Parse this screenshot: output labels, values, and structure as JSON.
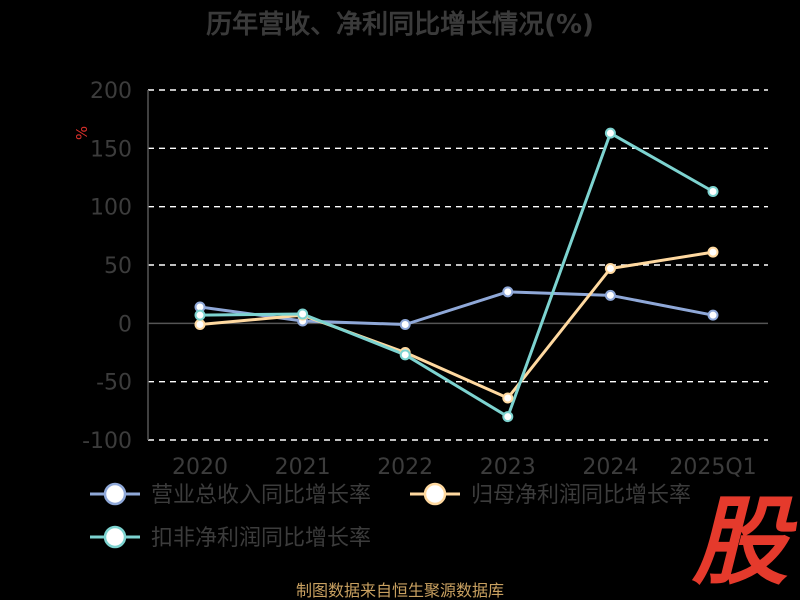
{
  "chart_data": {
    "type": "line",
    "title": "历年营收、净利同比增长情况(%)",
    "ylabel": "%",
    "categories": [
      "2020",
      "2021",
      "2022",
      "2023",
      "2024",
      "2025Q1"
    ],
    "ylim": [
      -100,
      200
    ],
    "yticks": [
      200,
      150,
      100,
      50,
      0,
      -50,
      -100
    ],
    "grid": true,
    "legend_position": "bottom-left",
    "series": [
      {
        "name": "营业总收入同比增长率",
        "color": "#8fa8d8",
        "values": [
          14,
          2,
          -1,
          27,
          24,
          7
        ]
      },
      {
        "name": "归母净利润同比增长率",
        "color": "#ffd9a0",
        "values": [
          -1,
          7,
          -25,
          -64,
          47,
          61
        ]
      },
      {
        "name": "扣非净利润同比增长率",
        "color": "#7dd3d0",
        "values": [
          7,
          8,
          -27,
          -80,
          163,
          113
        ]
      }
    ]
  },
  "source": "制图数据来自恒生聚源数据库",
  "stamp": "股"
}
